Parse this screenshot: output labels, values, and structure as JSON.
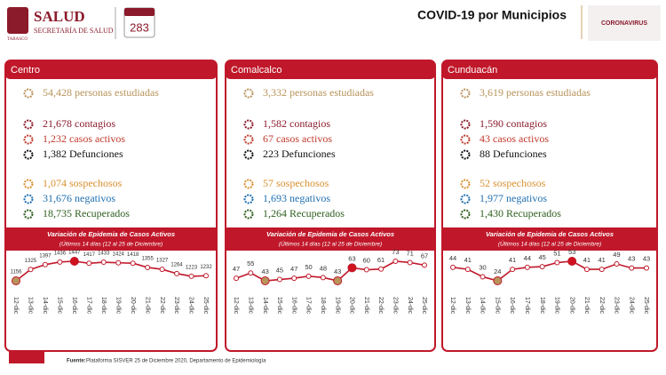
{
  "header": {
    "logo_title": "SALUD",
    "logo_subtitle": "SECRETARÍA DE SALUD",
    "logo_state": "TABASCO",
    "day_label": "283",
    "title": "COVID-19 por Municipios",
    "badge": "CORONAVIRUS"
  },
  "panels": [
    {
      "name": "Centro",
      "stats": [
        {
          "number": "54,428",
          "text": "personas estudiadas",
          "color": "#b8935a"
        },
        {
          "number": "21,678",
          "text": "contagios",
          "color": "#8b1a2b"
        },
        {
          "number": "1,232",
          "text": "casos activos",
          "color": "#c0392b"
        },
        {
          "number": "1,382",
          "text": "Defunciones",
          "color": "#111111"
        },
        {
          "number": "1,074",
          "text": "sospechosos",
          "color": "#d9902f"
        },
        {
          "number": "31,676",
          "text": "negativos",
          "color": "#1f6fb0"
        },
        {
          "number": "18,735",
          "text": "Recuperados",
          "color": "#2e5e1e"
        }
      ]
    },
    {
      "name": "Comalcalco",
      "stats": [
        {
          "number": "3,332",
          "text": "personas estudiadas",
          "color": "#b8935a"
        },
        {
          "number": "1,582",
          "text": "contagios",
          "color": "#8b1a2b"
        },
        {
          "number": "67",
          "text": "casos activos",
          "color": "#c0392b"
        },
        {
          "number": "223",
          "text": "Defunciones",
          "color": "#111111"
        },
        {
          "number": "57",
          "text": "sospechosos",
          "color": "#d9902f"
        },
        {
          "number": "1,693",
          "text": "negativos",
          "color": "#1f6fb0"
        },
        {
          "number": "1,264",
          "text": "Recuperados",
          "color": "#2e5e1e"
        }
      ]
    },
    {
      "name": "Cunduacán",
      "stats": [
        {
          "number": "3,619",
          "text": "personas estudiadas",
          "color": "#b8935a"
        },
        {
          "number": "1,590",
          "text": "contagios",
          "color": "#8b1a2b"
        },
        {
          "number": "43",
          "text": "casos activos",
          "color": "#c0392b"
        },
        {
          "number": "88",
          "text": "Defunciones",
          "color": "#111111"
        },
        {
          "number": "52",
          "text": "sospechosos",
          "color": "#d9902f"
        },
        {
          "number": "1,977",
          "text": "negativos",
          "color": "#1f6fb0"
        },
        {
          "number": "1,430",
          "text": "Recuperados",
          "color": "#2e5e1e"
        }
      ]
    }
  ],
  "chart_data": [
    {
      "type": "line",
      "title": "Variación de Epidemia de Casos Activos",
      "subtitle": "(Últimos 14 días (12 al 25 de Diciembre)",
      "categories": [
        "12-dic",
        "13-dic",
        "14-dic",
        "15-dic",
        "16-dic",
        "17-dic",
        "18-dic",
        "19-dic",
        "20-dic",
        "21-dic",
        "22-dic",
        "23-dic",
        "24-dic",
        "25-dic"
      ],
      "values": [
        1156,
        1325,
        1397,
        1436,
        1447,
        1417,
        1433,
        1424,
        1418,
        1355,
        1327,
        1264,
        1223,
        1232
      ],
      "color": "#c0182a",
      "point_colors": [
        "#b8935a",
        "#ffffff",
        "#ffffff",
        "#ffffff",
        "#d0121f",
        "#ffffff",
        "#ffffff",
        "#ffffff",
        "#ffffff",
        "#ffffff",
        "#ffffff",
        "#ffffff",
        "#ffffff",
        "#ffffff"
      ]
    },
    {
      "type": "line",
      "title": "Variación de Epidemia de Casos Activos",
      "subtitle": "(Últimos 14 días (12 al 25 de Diciembre)",
      "categories": [
        "12-dic",
        "13-dic",
        "14-dic",
        "15-dic",
        "16-dic",
        "17-dic",
        "18-dic",
        "19-dic",
        "20-dic",
        "21-dic",
        "22-dic",
        "23-dic",
        "24-dic",
        "25-dic"
      ],
      "values": [
        47,
        55,
        43,
        45,
        47,
        50,
        48,
        43,
        63,
        60,
        61,
        73,
        71,
        67
      ],
      "color": "#c0182a",
      "point_colors": [
        "#ffffff",
        "#ffffff",
        "#b8935a",
        "#ffffff",
        "#ffffff",
        "#ffffff",
        "#ffffff",
        "#b8935a",
        "#d0121f",
        "#ffffff",
        "#ffffff",
        "#ffffff",
        "#ffffff",
        "#ffffff"
      ]
    },
    {
      "type": "line",
      "title": "Variación de Epidemia de Casos Activos",
      "subtitle": "(Últimos 14 días (12 al 25 de Diciembre)",
      "categories": [
        "12-dic",
        "13-dic",
        "14-dic",
        "15-dic",
        "16-dic",
        "17-dic",
        "18-dic",
        "19-dic",
        "20-dic",
        "21-dic",
        "22-dic",
        "23-dic",
        "24-dic",
        "25-dic"
      ],
      "values": [
        44,
        41,
        30,
        24,
        41,
        44,
        45,
        51,
        53,
        41,
        41,
        49,
        43,
        43
      ],
      "color": "#c0182a",
      "point_colors": [
        "#ffffff",
        "#ffffff",
        "#ffffff",
        "#b8935a",
        "#ffffff",
        "#ffffff",
        "#ffffff",
        "#ffffff",
        "#d0121f",
        "#ffffff",
        "#ffffff",
        "#ffffff",
        "#ffffff",
        "#ffffff"
      ]
    }
  ],
  "footer": {
    "label": "Fuente:",
    "text": "Plataforma SISVER 25 de Diciembre 2020, Departamento de Epidemiología"
  }
}
